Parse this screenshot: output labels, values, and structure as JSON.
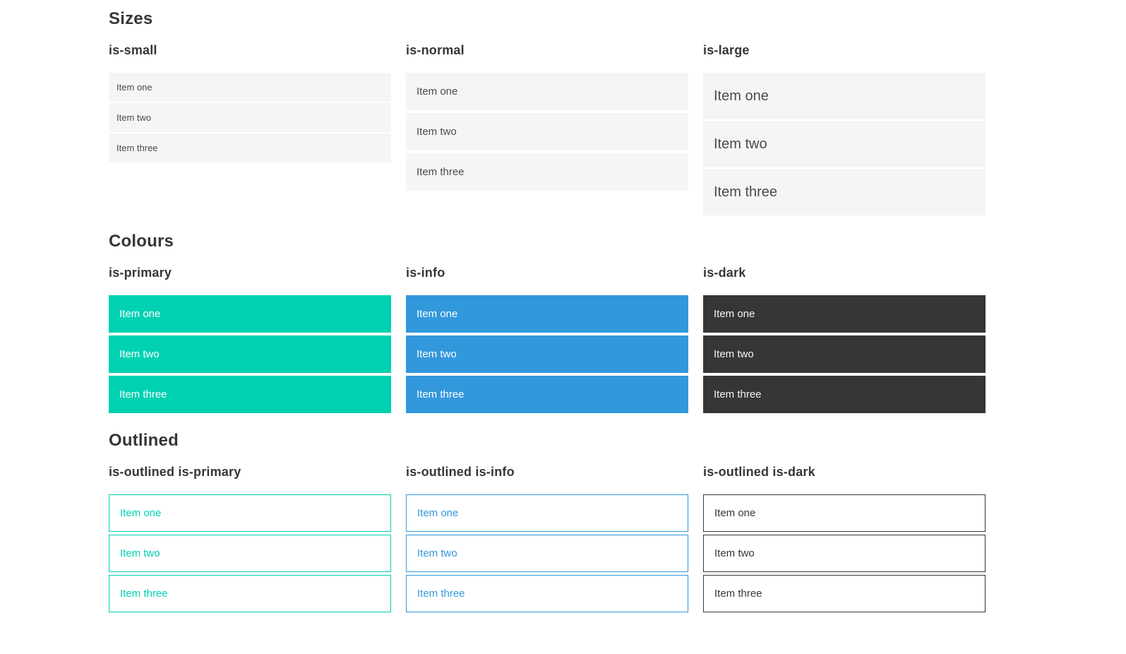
{
  "colors": {
    "primary": "#00d1b2",
    "info": "#3298dc",
    "dark": "#363636",
    "item_light_bg": "#f5f5f5",
    "item_text": "#4a4a4a",
    "heading_text": "#363636",
    "page_bg": "#ffffff"
  },
  "sections": [
    {
      "title": "Sizes",
      "groups": [
        {
          "label": "is-small",
          "variant": "small",
          "items": [
            "Item one",
            "Item two",
            "Item three"
          ]
        },
        {
          "label": "is-normal",
          "variant": "normal",
          "items": [
            "Item one",
            "Item two",
            "Item three"
          ]
        },
        {
          "label": "is-large",
          "variant": "large",
          "items": [
            "Item one",
            "Item two",
            "Item three"
          ]
        }
      ]
    },
    {
      "title": "Colours",
      "groups": [
        {
          "label": "is-primary",
          "variant": "primary",
          "items": [
            "Item one",
            "Item two",
            "Item three"
          ]
        },
        {
          "label": "is-info",
          "variant": "info",
          "items": [
            "Item one",
            "Item two",
            "Item three"
          ]
        },
        {
          "label": "is-dark",
          "variant": "dark",
          "items": [
            "Item one",
            "Item two",
            "Item three"
          ]
        }
      ]
    },
    {
      "title": "Outlined",
      "groups": [
        {
          "label": "is-outlined is-primary",
          "variant": "outlined-primary",
          "items": [
            "Item one",
            "Item two",
            "Item three"
          ]
        },
        {
          "label": "is-outlined is-info",
          "variant": "outlined-info",
          "items": [
            "Item one",
            "Item two",
            "Item three"
          ]
        },
        {
          "label": "is-outlined is-dark",
          "variant": "outlined-dark",
          "items": [
            "Item one",
            "Item two",
            "Item three"
          ]
        }
      ]
    }
  ]
}
